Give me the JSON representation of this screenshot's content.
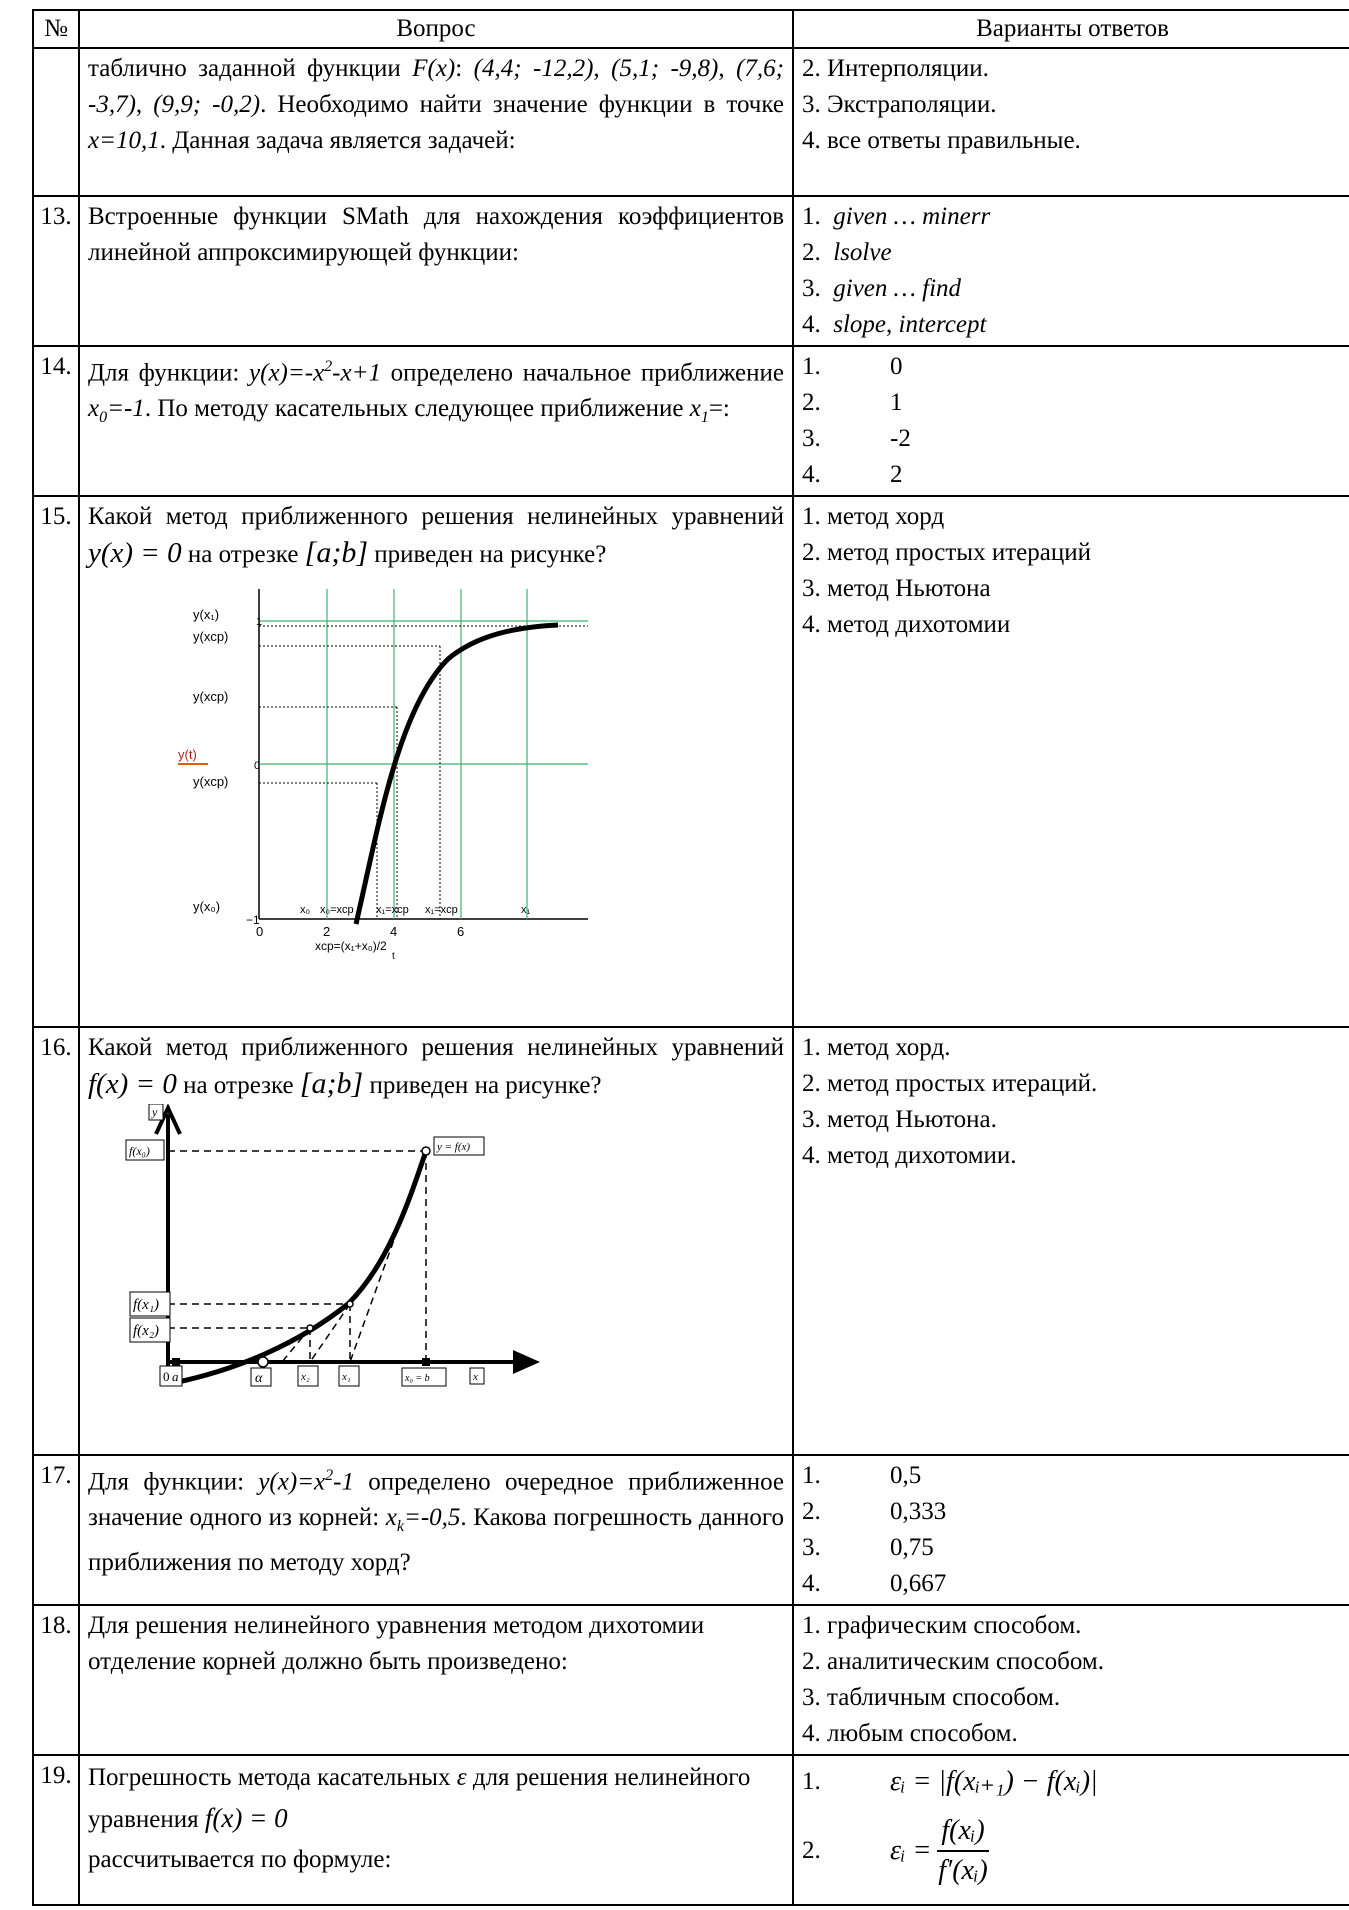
{
  "header": {
    "num": "№",
    "question": "Вопрос",
    "answers": "Варианты ответов"
  },
  "rows": [
    {
      "num": "",
      "question": {
        "p1": "таблично заданной функции ",
        "p2": "F(x)",
        "p3": ": ",
        "p4": "(4,4; -12,2)",
        "p5": ", ",
        "p6": "(5,1; -9,8)",
        "p7": ", ",
        "p8": "(7,6; -3,7)",
        "p9": ", ",
        "p10": "(9,9; -0,2)",
        "p11": ". Необходимо найти значение функции в точке ",
        "p12": "x=10,1",
        "p13": ". Данная задача является задачей:"
      },
      "answers": [
        "2.  Интерполяции.",
        "3.  Экстраполяции.",
        "4.  все ответы правильные."
      ]
    },
    {
      "num": "13.",
      "question": "Встроенные функции SMath для нахождения коэффициентов линейной аппроксимирующей функции:",
      "answers": [
        {
          "n": "1.",
          "t": "given … minerr"
        },
        {
          "n": "2.",
          "t": "lsolve"
        },
        {
          "n": "3.",
          "t": "given … find"
        },
        {
          "n": "4.",
          "a": "slope",
          "b": ", ",
          "c": "intercept"
        }
      ]
    },
    {
      "num": "14.",
      "question": {
        "p1": "Для функции: ",
        "p2": "y(x)=-x",
        "p3": "2",
        "p4": "-x+1",
        "p5": " определено начальное приближение ",
        "p6": "x",
        "p7": "0",
        "p8": "=-1",
        "p9": ". По методу касательных следующее приближение ",
        "p10": "x",
        "p11": "1",
        "p12": "=:"
      },
      "answers": [
        {
          "n": "1.",
          "v": "0"
        },
        {
          "n": "2.",
          "v": "1"
        },
        {
          "n": "3.",
          "v": "-2"
        },
        {
          "n": "4.",
          "v": "2"
        }
      ]
    },
    {
      "num": "15.",
      "question": {
        "p1": "Какой метод приближенного решения нелинейных уравнений ",
        "eq": "y(x) = 0",
        "p2": " на отрезке ",
        "seg": "[a;b]",
        "p3": " приведен на рисунке?"
      },
      "figure": {
        "y_labels": [
          "y(x₁)",
          "y(xcp)",
          "y(xcp)",
          "y(t)",
          "y(xcp)",
          "y(x₀)"
        ],
        "tick_1": "1",
        "tick_0": "0",
        "tick_m1": "−1",
        "x_ticks": [
          "0",
          "2",
          "4",
          "6"
        ],
        "x_marks": [
          "x₀",
          "x₀=xcp",
          "x₁=xcp",
          "x₁=xcp",
          "x₁"
        ],
        "xcp_formula": "xcp=(x₁+x₀)/2",
        "xlabel": "t"
      },
      "answers": [
        "1. метод хорд",
        "2. метод простых итераций",
        "3. метод Ньютона",
        "4. метод дихотомии"
      ]
    },
    {
      "num": "16.",
      "question": {
        "p1": "Какой метод приближенного решения нелинейных уравнений ",
        "eq": "f(x) = 0",
        "p2": " на отрезке ",
        "seg": "[a;b]",
        "p3": " приведен на рисунке?"
      },
      "figure": {
        "y": "y",
        "fx0": "f(x₀)",
        "yfx": "y = f(x)",
        "fx1": "f(x₁)",
        "fx2": "f(x₂)",
        "zero": "0",
        "a": "a",
        "alpha": "α",
        "x2": "x₂",
        "x1": "x₁",
        "x0b": "x₀ = b",
        "x": "x"
      },
      "answers": [
        "1. метод хорд.",
        "2. метод простых итераций.",
        "3. метод Ньютона.",
        "4. метод дихотомии."
      ]
    },
    {
      "num": "17.",
      "question": {
        "p1": "Для функции: ",
        "p2": "y(x)=x",
        "p3": "2",
        "p4": "-1",
        "p5": " определено очередное приближенное значение одного из корней: ",
        "p6": "x",
        "p7": "k",
        "p8": "=-0,5",
        "p9": ". Какова погрешность данного приближения по методу хорд?"
      },
      "answers": [
        {
          "n": "1.",
          "v": "0,5"
        },
        {
          "n": "2.",
          "v": "0,333"
        },
        {
          "n": "3.",
          "v": "0,75"
        },
        {
          "n": "4.",
          "v": "0,667"
        }
      ]
    },
    {
      "num": "18.",
      "question": "Для решения нелинейного уравнения методом дихотомии отделение корней должно быть произведено:",
      "answers": [
        "1. графическим способом.",
        "2. аналитическим способом.",
        "3. табличным способом.",
        "4. любым способом."
      ]
    },
    {
      "num": "19.",
      "question": {
        "p1": "Погрешность метода касательных ",
        "eps": "ε",
        "p2": " для решения нелинейного уравнения ",
        "eq": "f(x) = 0",
        "p3": "рассчитывается по формуле:"
      },
      "answers": [
        {
          "n": "1.",
          "f": "εᵢ = |f(xᵢ₊₁) − f(xᵢ)|"
        },
        {
          "n": "2.",
          "lhs": "εᵢ =",
          "num": "f(xᵢ)",
          "den": "f′(xᵢ)"
        }
      ]
    }
  ]
}
